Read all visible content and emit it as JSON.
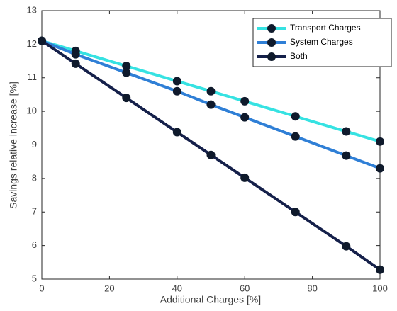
{
  "chart_data": {
    "type": "line",
    "xlabel": "Additional Charges [%]",
    "ylabel": "Savings relative increase [%]",
    "x": [
      0,
      10,
      25,
      40,
      50,
      60,
      75,
      90,
      100
    ],
    "series": [
      {
        "name": "Transport Charges",
        "color": "#36e2e2",
        "values": [
          12.1,
          11.8,
          11.35,
          10.9,
          10.6,
          10.3,
          9.85,
          9.4,
          9.1
        ]
      },
      {
        "name": "System Charges",
        "color": "#2f7fd6",
        "values": [
          12.1,
          11.7,
          11.15,
          10.6,
          10.2,
          9.82,
          9.25,
          8.68,
          8.3
        ]
      },
      {
        "name": "Both",
        "color": "#15204a",
        "values": [
          12.1,
          11.42,
          10.4,
          9.38,
          8.7,
          8.02,
          7.0,
          5.98,
          5.28
        ]
      }
    ],
    "marker_color": "#0f1a2c",
    "xlim": [
      0,
      100
    ],
    "xticks": [
      0,
      20,
      40,
      60,
      80,
      100
    ],
    "ylim": [
      5,
      13
    ],
    "yticks": [
      5,
      6,
      7,
      8,
      9,
      10,
      11,
      12,
      13
    ],
    "legend": "northeast",
    "grid": false
  }
}
